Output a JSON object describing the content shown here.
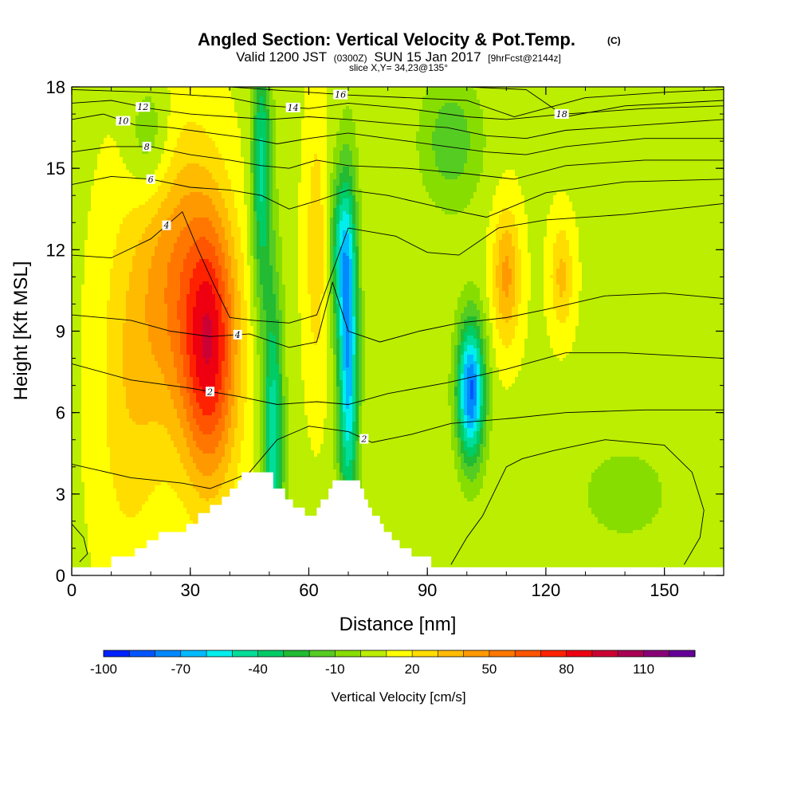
{
  "header": {
    "title": "Angled Section: Vertical Velocity & Pot.Temp.",
    "title_unit": "(C)",
    "valid_prefix": "Valid 1200 JST",
    "valid_z": "(0300Z)",
    "valid_date": "SUN 15 Jan 2017",
    "valid_fcst": "[9hrFcst@2144z]",
    "slice": "slice X,Y= 34,23@135°"
  },
  "chart_data": {
    "type": "heatmap",
    "xlabel": "Distance [nm]",
    "ylabel": "Height [Kft MSL]",
    "xlim": [
      0,
      165
    ],
    "ylim": [
      0,
      18
    ],
    "x_ticks": [
      0,
      30,
      60,
      90,
      120,
      150
    ],
    "y_ticks": [
      0,
      3,
      6,
      9,
      12,
      15,
      18
    ],
    "x_minor_step": 10,
    "y_minor_step": 1,
    "field_name": "Vertical Velocity [cm/s]",
    "colorbar": {
      "label": "Vertical Velocity [cm/s]",
      "min": -100,
      "max": 130,
      "step": 10,
      "tick_labels": [
        "-100",
        "-70",
        "-40",
        "-10",
        "20",
        "50",
        "80",
        "110"
      ],
      "colors": [
        "#0022ff",
        "#0055ff",
        "#0088ff",
        "#00bbff",
        "#00eeee",
        "#00dd99",
        "#00cc66",
        "#22bb33",
        "#55cc22",
        "#88dd00",
        "#bbee00",
        "#ffff00",
        "#ffdd00",
        "#ffbb00",
        "#ff9900",
        "#ff7700",
        "#ff5500",
        "#ff2200",
        "#ee0011",
        "#cc0033",
        "#aa0055",
        "#880077",
        "#660099"
      ]
    },
    "velocity_features": [
      {
        "kind": "updraft",
        "x": 35,
        "z": 8.5,
        "peak": 75,
        "width": 7,
        "height": 5
      },
      {
        "kind": "updraft",
        "x": 25,
        "z": 11,
        "peak": 35,
        "width": 9,
        "height": 6
      },
      {
        "kind": "updraft",
        "x": 14,
        "z": 7,
        "peak": 18,
        "width": 8,
        "height": 7
      },
      {
        "kind": "downdraft",
        "x": 51,
        "z": 5,
        "peak": -55,
        "width": 2.6,
        "height": 6
      },
      {
        "kind": "downdraft",
        "x": 48,
        "z": 15,
        "peak": -50,
        "width": 2.5,
        "height": 5
      },
      {
        "kind": "downdraft",
        "x": 70,
        "z": 8,
        "peak": -75,
        "width": 2.6,
        "height": 6
      },
      {
        "kind": "downdraft",
        "x": 68,
        "z": 12,
        "peak": -40,
        "width": 3,
        "height": 3
      },
      {
        "kind": "downdraft",
        "x": 101,
        "z": 6.8,
        "peak": -90,
        "width": 3.5,
        "height": 2.6
      },
      {
        "kind": "updraft",
        "x": 110,
        "z": 11,
        "peak": 35,
        "width": 3.5,
        "height": 2.5
      },
      {
        "kind": "updraft",
        "x": 124,
        "z": 11,
        "peak": 25,
        "width": 3,
        "height": 2
      },
      {
        "kind": "updraft",
        "x": 62,
        "z": 12,
        "peak": 20,
        "width": 3,
        "height": 5
      },
      {
        "kind": "downdraft",
        "x": 20,
        "z": 16,
        "peak": -25,
        "width": 6,
        "height": 2.5
      },
      {
        "kind": "downdraft",
        "x": 96,
        "z": 16,
        "peak": -25,
        "width": 8,
        "height": 2.5
      },
      {
        "kind": "downdraft",
        "x": 140,
        "z": 3,
        "peak": -10,
        "width": 20,
        "height": 3
      }
    ],
    "terrain_steps": [
      [
        0,
        0.3
      ],
      [
        10,
        0.7
      ],
      [
        16,
        1.0
      ],
      [
        19,
        1.3
      ],
      [
        22,
        1.6
      ],
      [
        29,
        1.9
      ],
      [
        32,
        2.3
      ],
      [
        35,
        2.6
      ],
      [
        38,
        2.9
      ],
      [
        40,
        3.2
      ],
      [
        42,
        3.5
      ],
      [
        43,
        3.8
      ],
      [
        48,
        3.8
      ],
      [
        51,
        3.2
      ],
      [
        54,
        2.8
      ],
      [
        56,
        2.5
      ],
      [
        59,
        2.2
      ],
      [
        62,
        2.5
      ],
      [
        63,
        2.8
      ],
      [
        65,
        3.2
      ],
      [
        66,
        3.5
      ],
      [
        72,
        3.5
      ],
      [
        73,
        3.2
      ],
      [
        74,
        2.8
      ],
      [
        75,
        2.5
      ],
      [
        76,
        2.2
      ],
      [
        78,
        1.9
      ],
      [
        79,
        1.6
      ],
      [
        81,
        1.3
      ],
      [
        83,
        1.0
      ],
      [
        86,
        0.7
      ],
      [
        91,
        0.3
      ],
      [
        165,
        0.3
      ]
    ],
    "isentropes": [
      {
        "value": "2",
        "label_x": 35,
        "points": [
          [
            0,
            7.8
          ],
          [
            15,
            7.2
          ],
          [
            30,
            6.9
          ],
          [
            42,
            6.6
          ],
          [
            52,
            6.3
          ],
          [
            62,
            6.4
          ],
          [
            70,
            6.3
          ],
          [
            80,
            6.7
          ],
          [
            95,
            7.1
          ],
          [
            110,
            7.6
          ],
          [
            125,
            8.2
          ],
          [
            140,
            8.2
          ],
          [
            165,
            8.0
          ]
        ]
      },
      {
        "value": "2",
        "label_x": 74,
        "points": [
          [
            0,
            4.1
          ],
          [
            15,
            3.6
          ],
          [
            28,
            3.4
          ],
          [
            35,
            3.2
          ],
          [
            42,
            3.6
          ],
          [
            45,
            3.8
          ],
          [
            52,
            5.0
          ],
          [
            60,
            5.5
          ],
          [
            70,
            5.3
          ],
          [
            76,
            4.9
          ],
          [
            86,
            5.2
          ],
          [
            96,
            5.6
          ],
          [
            104,
            5.7
          ],
          [
            112,
            5.8
          ],
          [
            125,
            6.0
          ],
          [
            145,
            6.1
          ],
          [
            165,
            6.1
          ]
        ]
      },
      {
        "value": "4",
        "label_x": 42,
        "points": [
          [
            0,
            9.6
          ],
          [
            15,
            9.4
          ],
          [
            25,
            9.0
          ],
          [
            35,
            8.8
          ],
          [
            45,
            8.9
          ],
          [
            55,
            8.4
          ],
          [
            62,
            8.6
          ],
          [
            66,
            10.8
          ],
          [
            70,
            9.0
          ],
          [
            78,
            8.6
          ],
          [
            88,
            9.0
          ],
          [
            98,
            9.3
          ],
          [
            110,
            9.5
          ],
          [
            120,
            9.8
          ],
          [
            135,
            10.3
          ],
          [
            150,
            10.4
          ],
          [
            165,
            10.2
          ]
        ]
      },
      {
        "value": "4",
        "label_x": 24,
        "points": [
          [
            0,
            11.8
          ],
          [
            10,
            11.7
          ],
          [
            20,
            12.4
          ],
          [
            28,
            13.4
          ],
          [
            32,
            12.0
          ],
          [
            36,
            10.7
          ],
          [
            40,
            9.5
          ],
          [
            46,
            9.4
          ],
          [
            55,
            9.3
          ],
          [
            62,
            9.6
          ],
          [
            70,
            12.8
          ],
          [
            82,
            12.5
          ],
          [
            90,
            11.9
          ],
          [
            98,
            11.8
          ],
          [
            108,
            12.8
          ],
          [
            120,
            13.1
          ],
          [
            140,
            13.3
          ],
          [
            165,
            13.7
          ]
        ]
      },
      {
        "value": "6",
        "label_x": 20,
        "points": [
          [
            0,
            14.4
          ],
          [
            10,
            14.7
          ],
          [
            20,
            14.6
          ],
          [
            30,
            14.3
          ],
          [
            40,
            14.2
          ],
          [
            48,
            14.0
          ],
          [
            55,
            13.5
          ],
          [
            62,
            13.8
          ],
          [
            70,
            14.2
          ],
          [
            80,
            14.0
          ],
          [
            95,
            13.5
          ],
          [
            105,
            13.2
          ],
          [
            120,
            14.1
          ],
          [
            140,
            14.5
          ],
          [
            165,
            14.6
          ]
        ]
      },
      {
        "value": "8",
        "label_x": 19,
        "points": [
          [
            0,
            15.6
          ],
          [
            10,
            15.8
          ],
          [
            20,
            15.8
          ],
          [
            30,
            15.5
          ],
          [
            40,
            15.3
          ],
          [
            48,
            15.1
          ],
          [
            55,
            15.0
          ],
          [
            62,
            15.3
          ],
          [
            70,
            15.1
          ],
          [
            85,
            15.0
          ],
          [
            100,
            14.8
          ],
          [
            112,
            14.6
          ],
          [
            125,
            15.1
          ],
          [
            145,
            15.3
          ],
          [
            165,
            15.3
          ]
        ]
      },
      {
        "value": "10",
        "label_x": 13,
        "points": [
          [
            0,
            16.8
          ],
          [
            8,
            17.0
          ],
          [
            16,
            16.6
          ],
          [
            25,
            16.5
          ],
          [
            35,
            16.3
          ],
          [
            45,
            16.1
          ],
          [
            52,
            15.9
          ],
          [
            60,
            16.1
          ],
          [
            70,
            16.3
          ],
          [
            85,
            16.0
          ],
          [
            95,
            15.8
          ],
          [
            105,
            15.6
          ],
          [
            115,
            15.5
          ],
          [
            125,
            15.8
          ],
          [
            145,
            16.1
          ],
          [
            165,
            16.1
          ]
        ]
      },
      {
        "value": "12",
        "label_x": 18,
        "points": [
          [
            0,
            17.4
          ],
          [
            10,
            17.5
          ],
          [
            20,
            17.2
          ],
          [
            30,
            17.0
          ],
          [
            40,
            16.9
          ],
          [
            50,
            16.8
          ],
          [
            60,
            16.9
          ],
          [
            70,
            16.8
          ],
          [
            85,
            16.6
          ],
          [
            95,
            16.5
          ],
          [
            105,
            16.2
          ],
          [
            115,
            16.1
          ],
          [
            125,
            16.4
          ],
          [
            145,
            16.6
          ],
          [
            165,
            16.8
          ]
        ]
      },
      {
        "value": "14",
        "label_x": 56,
        "points": [
          [
            0,
            17.9
          ],
          [
            20,
            17.8
          ],
          [
            40,
            17.6
          ],
          [
            50,
            17.3
          ],
          [
            60,
            17.2
          ],
          [
            70,
            17.4
          ],
          [
            85,
            17.2
          ],
          [
            100,
            16.9
          ],
          [
            110,
            16.8
          ],
          [
            125,
            17.0
          ],
          [
            145,
            17.2
          ],
          [
            165,
            17.3
          ]
        ]
      },
      {
        "value": "16",
        "label_x": 68,
        "points": [
          [
            40,
            18.0
          ],
          [
            60,
            17.8
          ],
          [
            70,
            17.7
          ],
          [
            85,
            17.6
          ],
          [
            100,
            17.5
          ],
          [
            112,
            16.9
          ],
          [
            130,
            17.6
          ],
          [
            150,
            17.8
          ],
          [
            165,
            17.9
          ]
        ]
      },
      {
        "value": "18",
        "label_x": 124,
        "points": [
          [
            100,
            18.0
          ],
          [
            115,
            17.9
          ],
          [
            125,
            16.9
          ],
          [
            140,
            17.3
          ],
          [
            165,
            17.5
          ]
        ]
      },
      {
        "value": "2",
        "label_x": 0,
        "points": [
          [
            0,
            1.9
          ],
          [
            3,
            1.4
          ],
          [
            4,
            0.8
          ],
          [
            2,
            0.5
          ]
        ]
      },
      {
        "value": "2",
        "label_x": 0,
        "points": [
          [
            96,
            0.4
          ],
          [
            100,
            1.4
          ],
          [
            104,
            2.2
          ],
          [
            110,
            4.0
          ],
          [
            114,
            4.3
          ],
          [
            122,
            4.6
          ],
          [
            135,
            5.0
          ],
          [
            150,
            4.8
          ],
          [
            157,
            3.8
          ],
          [
            160,
            2.4
          ],
          [
            159,
            1.4
          ],
          [
            155,
            0.4
          ]
        ]
      }
    ]
  }
}
